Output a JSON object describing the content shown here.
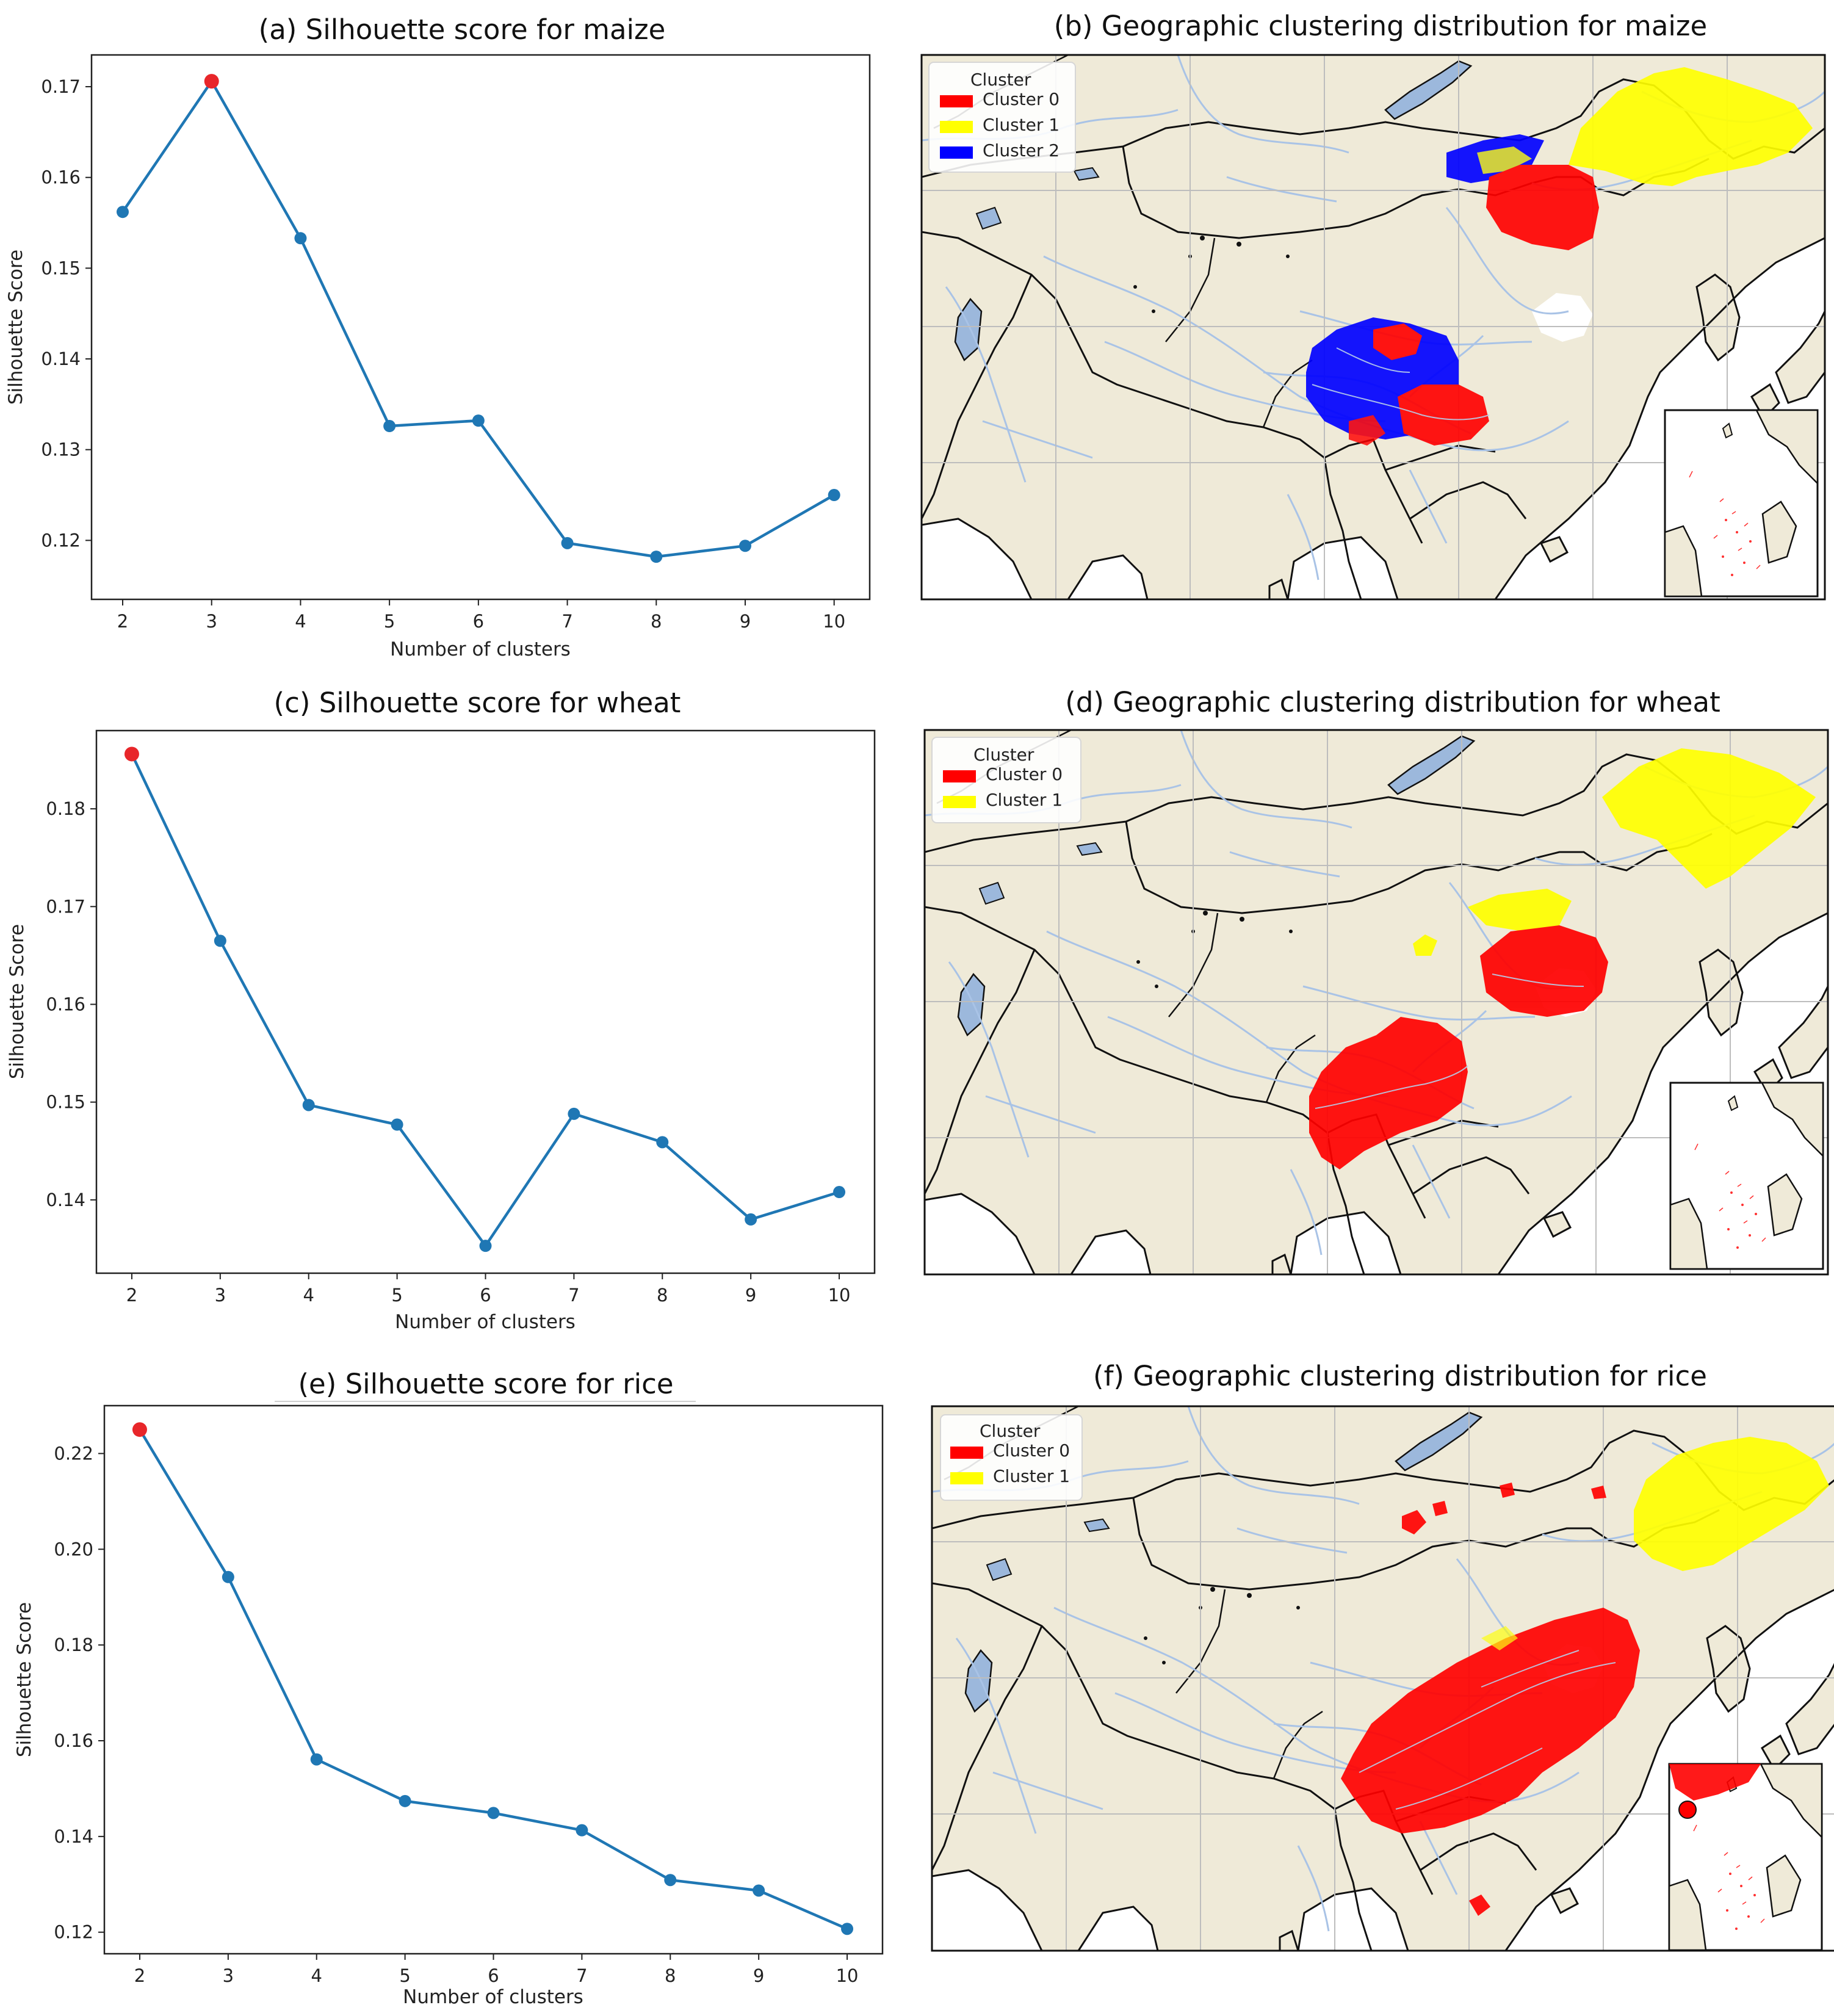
{
  "colors": {
    "line": "#1f77b4",
    "highlight": "#e8262a",
    "land": "#efead8",
    "water": "#ffffff",
    "river": "#a9c3e6",
    "lake": "#9cb8dc",
    "grid": "#bdbdbd",
    "border": "#111111",
    "cluster_red": "#ff0000",
    "cluster_yellow": "#ffff00",
    "cluster_blue": "#0000ff"
  },
  "chart_data": [
    {
      "id": "a",
      "type": "line",
      "title": "(a) Silhouette score for maize",
      "xlabel": "Number of clusters",
      "ylabel": "Silhouette Score",
      "x": [
        2,
        3,
        4,
        5,
        6,
        7,
        8,
        9,
        10
      ],
      "values": [
        0.1562,
        0.1706,
        0.1533,
        0.1326,
        0.1332,
        0.1197,
        0.1182,
        0.1194,
        0.125
      ],
      "highlight_index": 1,
      "xlim": [
        1.65,
        10.4
      ],
      "ylim": [
        0.1135,
        0.1735
      ],
      "yticks": [
        0.12,
        0.13,
        0.14,
        0.15,
        0.16,
        0.17
      ],
      "ytick_labels": [
        "0.12",
        "0.13",
        "0.14",
        "0.15",
        "0.16",
        "0.17"
      ],
      "xticks": [
        2,
        3,
        4,
        5,
        6,
        7,
        8,
        9,
        10
      ],
      "xtick_labels": [
        "2",
        "3",
        "4",
        "5",
        "6",
        "7",
        "8",
        "9",
        "10"
      ]
    },
    {
      "id": "c",
      "type": "line",
      "title": "(c) Silhouette score for wheat",
      "xlabel": "Number of clusters",
      "ylabel": "Silhouette Score",
      "x": [
        2,
        3,
        4,
        5,
        6,
        7,
        8,
        9,
        10
      ],
      "values": [
        0.1856,
        0.1665,
        0.1497,
        0.1477,
        0.1353,
        0.1488,
        0.1459,
        0.138,
        0.1408
      ],
      "highlight_index": 0,
      "xlim": [
        1.6,
        10.4
      ],
      "ylim": [
        0.1325,
        0.188
      ],
      "yticks": [
        0.14,
        0.15,
        0.16,
        0.17,
        0.18
      ],
      "ytick_labels": [
        "0.14",
        "0.15",
        "0.16",
        "0.17",
        "0.18"
      ],
      "xticks": [
        2,
        3,
        4,
        5,
        6,
        7,
        8,
        9,
        10
      ],
      "xtick_labels": [
        "2",
        "3",
        "4",
        "5",
        "6",
        "7",
        "8",
        "9",
        "10"
      ]
    },
    {
      "id": "e",
      "type": "line",
      "title": "(e) Silhouette score for rice",
      "xlabel": "Number of clusters",
      "ylabel": "Silhouette Score",
      "x": [
        2,
        3,
        4,
        5,
        6,
        7,
        8,
        9,
        10
      ],
      "values": [
        0.225,
        0.1942,
        0.1561,
        0.1474,
        0.1449,
        0.1413,
        0.1309,
        0.1287,
        0.1207
      ],
      "highlight_index": 0,
      "xlim": [
        1.6,
        10.4
      ],
      "ylim": [
        0.1155,
        0.23
      ],
      "yticks": [
        0.12,
        0.14,
        0.16,
        0.18,
        0.2,
        0.22
      ],
      "ytick_labels": [
        "0.12",
        "0.14",
        "0.16",
        "0.18",
        "0.20",
        "0.22"
      ],
      "xticks": [
        2,
        3,
        4,
        5,
        6,
        7,
        8,
        9,
        10
      ],
      "xtick_labels": [
        "2",
        "3",
        "4",
        "5",
        "6",
        "7",
        "8",
        "9",
        "10"
      ]
    }
  ],
  "maps": [
    {
      "id": "b",
      "title": "(b) Geographic clustering distribution for maize",
      "legend_title": "Cluster",
      "legend": [
        {
          "label": "Cluster 0",
          "color": "#ff0000"
        },
        {
          "label": "Cluster 1",
          "color": "#ffff00"
        },
        {
          "label": "Cluster 2",
          "color": "#0000ff"
        }
      ]
    },
    {
      "id": "d",
      "title": "(d) Geographic clustering distribution for wheat",
      "legend_title": "Cluster",
      "legend": [
        {
          "label": "Cluster 0",
          "color": "#ff0000"
        },
        {
          "label": "Cluster 1",
          "color": "#ffff00"
        }
      ]
    },
    {
      "id": "f",
      "title": "(f) Geographic clustering distribution for rice",
      "legend_title": "Cluster",
      "legend": [
        {
          "label": "Cluster 0",
          "color": "#ff0000"
        },
        {
          "label": "Cluster 1",
          "color": "#ffff00"
        }
      ]
    }
  ]
}
